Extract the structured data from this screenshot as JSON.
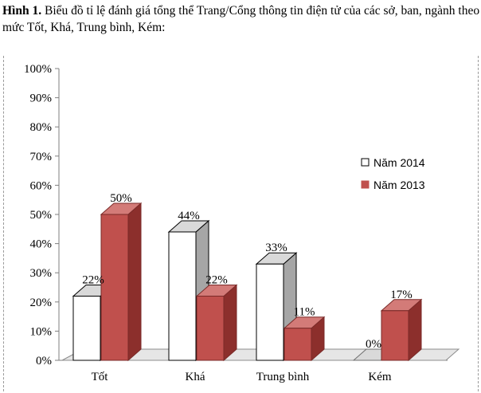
{
  "caption": {
    "label": "Hình 1.",
    "text": "Biểu đồ tỉ lệ đánh giá tổng thể Trang/Cổng thông tin điện tử của các sở, ban, ngành theo mức Tốt, Khá, Trung bình, Kém:"
  },
  "chart_data": {
    "type": "bar",
    "categories": [
      "Tốt",
      "Khá",
      "Trung bình",
      "Kém"
    ],
    "series": [
      {
        "name": "Năm 2014",
        "values": [
          22,
          44,
          33,
          0
        ],
        "labels": [
          "22%",
          "44%",
          "33%",
          "0%"
        ],
        "color": "#ffffff"
      },
      {
        "name": "Năm 2013",
        "values": [
          50,
          22,
          11,
          17
        ],
        "labels": [
          "50%",
          "22%",
          "11%",
          "17%"
        ],
        "color": "#c0504d"
      }
    ],
    "y_ticks": [
      "0%",
      "10%",
      "20%",
      "30%",
      "40%",
      "50%",
      "60%",
      "70%",
      "80%",
      "90%",
      "100%"
    ],
    "ylim": [
      0,
      100
    ],
    "legend_position": "right",
    "grid": false,
    "style": "3d-clustered-column"
  }
}
